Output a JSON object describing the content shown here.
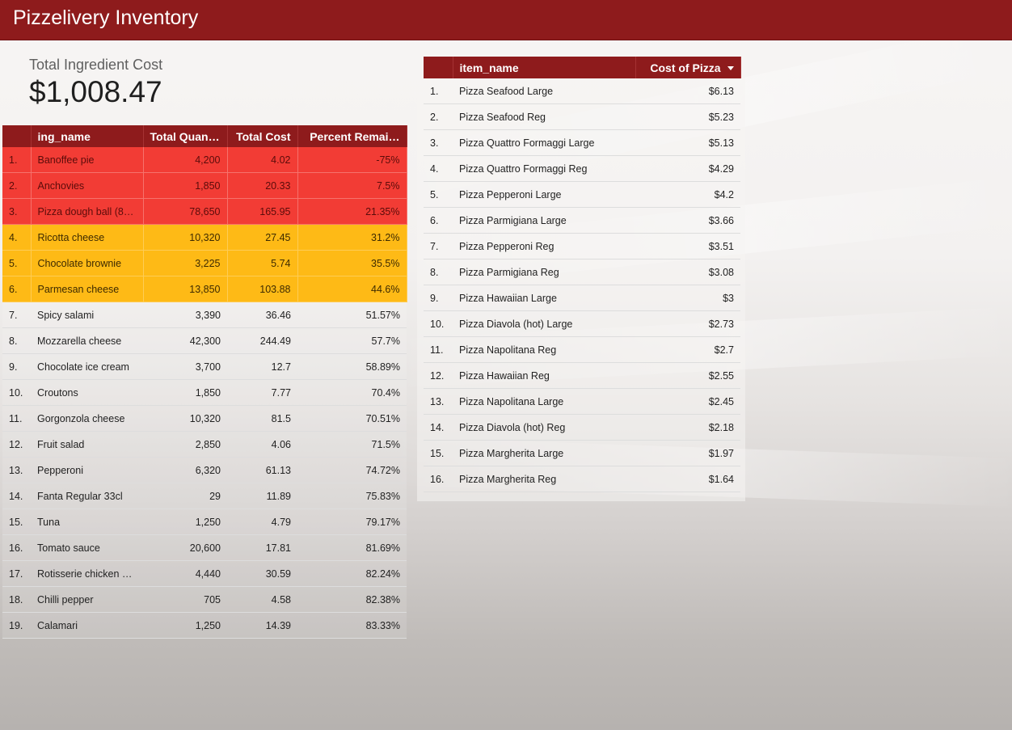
{
  "header": {
    "title": "Pizzelivery Inventory"
  },
  "scorecard": {
    "label": "Total Ingredient Cost",
    "value": "$1,008.47"
  },
  "ingredients_table": {
    "columns": [
      "ing_name",
      "Total Quant…",
      "Total Cost",
      "Percent Remai…"
    ],
    "rows": [
      {
        "idx": "1.",
        "name": "Banoffee pie",
        "qty": "4,200",
        "cost": "4.02",
        "pct": "-75%",
        "status": "red"
      },
      {
        "idx": "2.",
        "name": "Anchovies",
        "qty": "1,850",
        "cost": "20.33",
        "pct": "7.5%",
        "status": "red"
      },
      {
        "idx": "3.",
        "name": "Pizza dough ball (8 …",
        "qty": "78,650",
        "cost": "165.95",
        "pct": "21.35%",
        "status": "red"
      },
      {
        "idx": "4.",
        "name": "Ricotta cheese",
        "qty": "10,320",
        "cost": "27.45",
        "pct": "31.2%",
        "status": "amber"
      },
      {
        "idx": "5.",
        "name": "Chocolate brownie",
        "qty": "3,225",
        "cost": "5.74",
        "pct": "35.5%",
        "status": "amber"
      },
      {
        "idx": "6.",
        "name": "Parmesan cheese",
        "qty": "13,850",
        "cost": "103.88",
        "pct": "44.6%",
        "status": "amber"
      },
      {
        "idx": "7.",
        "name": "Spicy salami",
        "qty": "3,390",
        "cost": "36.46",
        "pct": "51.57%",
        "status": "normal"
      },
      {
        "idx": "8.",
        "name": "Mozzarella cheese",
        "qty": "42,300",
        "cost": "244.49",
        "pct": "57.7%",
        "status": "normal"
      },
      {
        "idx": "9.",
        "name": "Chocolate ice cream",
        "qty": "3,700",
        "cost": "12.7",
        "pct": "58.89%",
        "status": "normal"
      },
      {
        "idx": "10.",
        "name": "Croutons",
        "qty": "1,850",
        "cost": "7.77",
        "pct": "70.4%",
        "status": "normal"
      },
      {
        "idx": "11.",
        "name": "Gorgonzola cheese",
        "qty": "10,320",
        "cost": "81.5",
        "pct": "70.51%",
        "status": "normal"
      },
      {
        "idx": "12.",
        "name": "Fruit salad",
        "qty": "2,850",
        "cost": "4.06",
        "pct": "71.5%",
        "status": "normal"
      },
      {
        "idx": "13.",
        "name": "Pepperoni",
        "qty": "6,320",
        "cost": "61.13",
        "pct": "74.72%",
        "status": "normal"
      },
      {
        "idx": "14.",
        "name": "Fanta Regular 33cl",
        "qty": "29",
        "cost": "11.89",
        "pct": "75.83%",
        "status": "normal"
      },
      {
        "idx": "15.",
        "name": "Tuna",
        "qty": "1,250",
        "cost": "4.79",
        "pct": "79.17%",
        "status": "normal"
      },
      {
        "idx": "16.",
        "name": "Tomato sauce",
        "qty": "20,600",
        "cost": "17.81",
        "pct": "81.69%",
        "status": "normal"
      },
      {
        "idx": "17.",
        "name": "Rotisserie chicken p…",
        "qty": "4,440",
        "cost": "30.59",
        "pct": "82.24%",
        "status": "normal"
      },
      {
        "idx": "18.",
        "name": "Chilli pepper",
        "qty": "705",
        "cost": "4.58",
        "pct": "82.38%",
        "status": "normal"
      },
      {
        "idx": "19.",
        "name": "Calamari",
        "qty": "1,250",
        "cost": "14.39",
        "pct": "83.33%",
        "status": "normal"
      }
    ]
  },
  "pizza_table": {
    "columns": [
      "item_name",
      "Cost of Pizza"
    ],
    "sort_icon": "sort-descending-icon",
    "rows": [
      {
        "idx": "1.",
        "name": "Pizza Seafood Large",
        "cost": "$6.13"
      },
      {
        "idx": "2.",
        "name": "Pizza Seafood Reg",
        "cost": "$5.23"
      },
      {
        "idx": "3.",
        "name": "Pizza Quattro Formaggi Large",
        "cost": "$5.13"
      },
      {
        "idx": "4.",
        "name": "Pizza Quattro Formaggi Reg",
        "cost": "$4.29"
      },
      {
        "idx": "5.",
        "name": "Pizza Pepperoni Large",
        "cost": "$4.2"
      },
      {
        "idx": "6.",
        "name": "Pizza Parmigiana Large",
        "cost": "$3.66"
      },
      {
        "idx": "7.",
        "name": "Pizza Pepperoni Reg",
        "cost": "$3.51"
      },
      {
        "idx": "8.",
        "name": "Pizza Parmigiana Reg",
        "cost": "$3.08"
      },
      {
        "idx": "9.",
        "name": "Pizza Hawaiian Large",
        "cost": "$3"
      },
      {
        "idx": "10.",
        "name": "Pizza Diavola (hot) Large",
        "cost": "$2.73"
      },
      {
        "idx": "11.",
        "name": "Pizza Napolitana Reg",
        "cost": "$2.7"
      },
      {
        "idx": "12.",
        "name": "Pizza Hawaiian Reg",
        "cost": "$2.55"
      },
      {
        "idx": "13.",
        "name": "Pizza Napolitana Large",
        "cost": "$2.45"
      },
      {
        "idx": "14.",
        "name": "Pizza Diavola (hot) Reg",
        "cost": "$2.18"
      },
      {
        "idx": "15.",
        "name": "Pizza Margherita Large",
        "cost": "$1.97"
      },
      {
        "idx": "16.",
        "name": "Pizza Margherita Reg",
        "cost": "$1.64"
      }
    ]
  },
  "colors": {
    "header": "#8e1b1c",
    "status_red": "#f23c35",
    "status_amber": "#feba16"
  }
}
